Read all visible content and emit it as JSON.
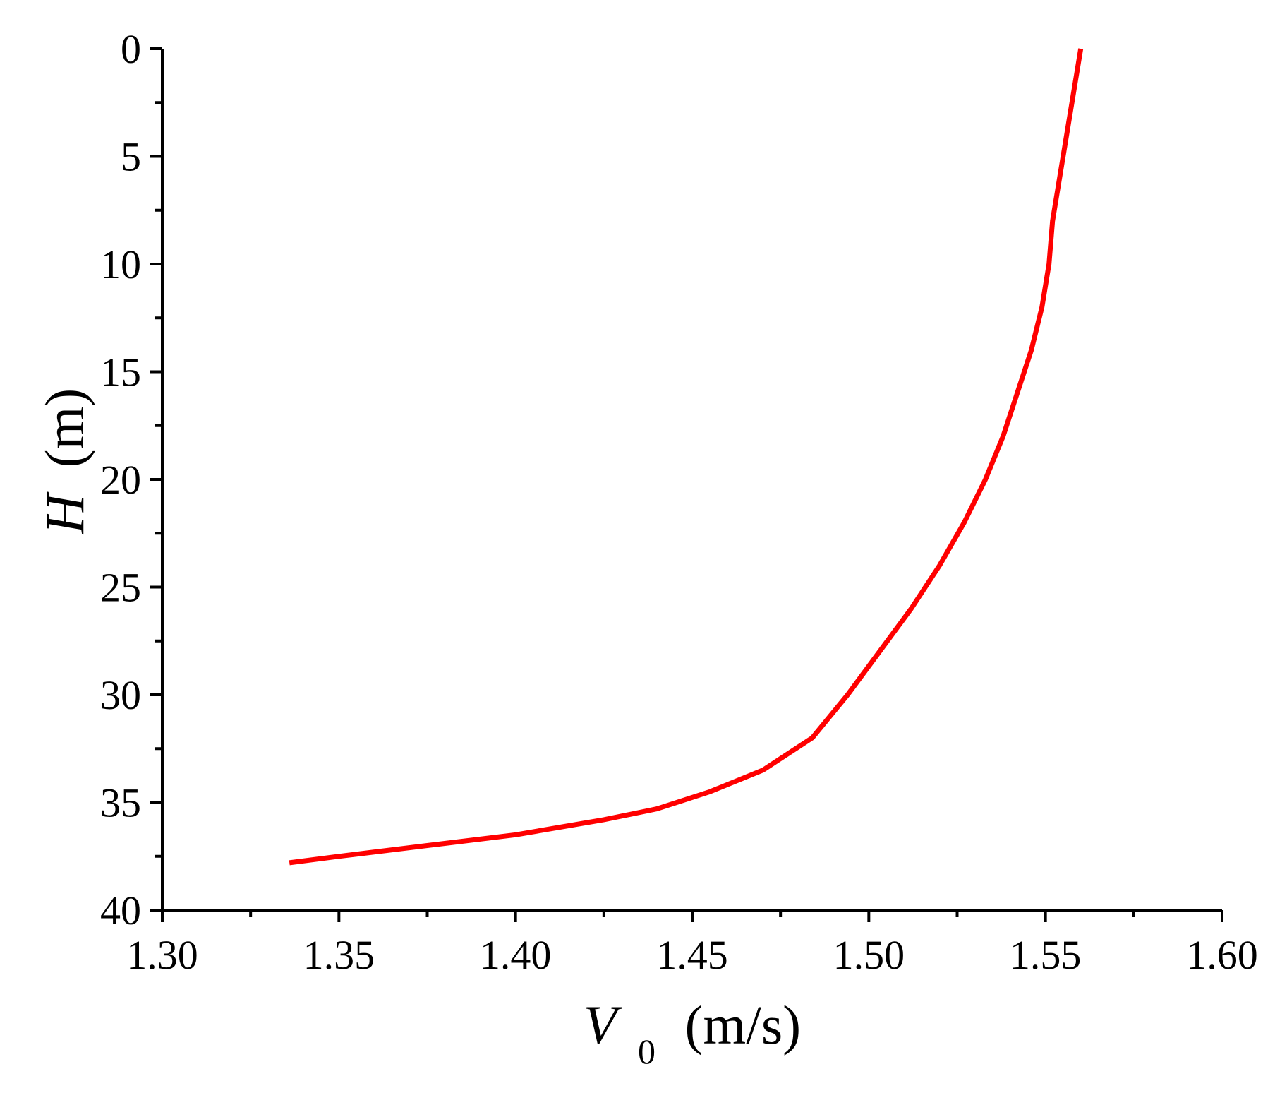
{
  "chart_data": {
    "type": "line",
    "title": "",
    "xlabel": {
      "symbol": "V",
      "subscript": "0",
      "unit": "(m/s)"
    },
    "ylabel": {
      "symbol": "H",
      "unit": "(m)"
    },
    "xlim": [
      1.3,
      1.6
    ],
    "ylim": [
      0,
      40
    ],
    "y_inverted": true,
    "grid": false,
    "legend": "none",
    "x_ticks": [
      1.3,
      1.35,
      1.4,
      1.45,
      1.5,
      1.55,
      1.6
    ],
    "x_tick_labels": [
      "1.30",
      "1.35",
      "1.40",
      "1.45",
      "1.50",
      "1.55",
      "1.60"
    ],
    "x_minor_ticks": [
      1.325,
      1.375,
      1.425,
      1.475,
      1.525,
      1.575
    ],
    "y_ticks": [
      0,
      5,
      10,
      15,
      20,
      25,
      30,
      35,
      40
    ],
    "y_tick_labels": [
      "0",
      "5",
      "10",
      "15",
      "20",
      "25",
      "30",
      "35",
      "40"
    ],
    "y_minor_ticks": [
      2.5,
      7.5,
      12.5,
      17.5,
      22.5,
      27.5,
      32.5,
      37.5
    ],
    "series": [
      {
        "color": "#ff0000",
        "points": [
          [
            1.56,
            0.0
          ],
          [
            1.558,
            2.0
          ],
          [
            1.556,
            4.0
          ],
          [
            1.554,
            6.0
          ],
          [
            1.552,
            8.0
          ],
          [
            1.551,
            10.0
          ],
          [
            1.549,
            12.0
          ],
          [
            1.546,
            14.0
          ],
          [
            1.542,
            16.0
          ],
          [
            1.538,
            18.0
          ],
          [
            1.533,
            20.0
          ],
          [
            1.527,
            22.0
          ],
          [
            1.52,
            24.0
          ],
          [
            1.512,
            26.0
          ],
          [
            1.503,
            28.0
          ],
          [
            1.494,
            30.0
          ],
          [
            1.484,
            32.0
          ],
          [
            1.47,
            33.5
          ],
          [
            1.455,
            34.5
          ],
          [
            1.44,
            35.3
          ],
          [
            1.425,
            35.8
          ],
          [
            1.4,
            36.5
          ],
          [
            1.375,
            37.0
          ],
          [
            1.35,
            37.5
          ],
          [
            1.336,
            37.8
          ]
        ]
      }
    ]
  }
}
